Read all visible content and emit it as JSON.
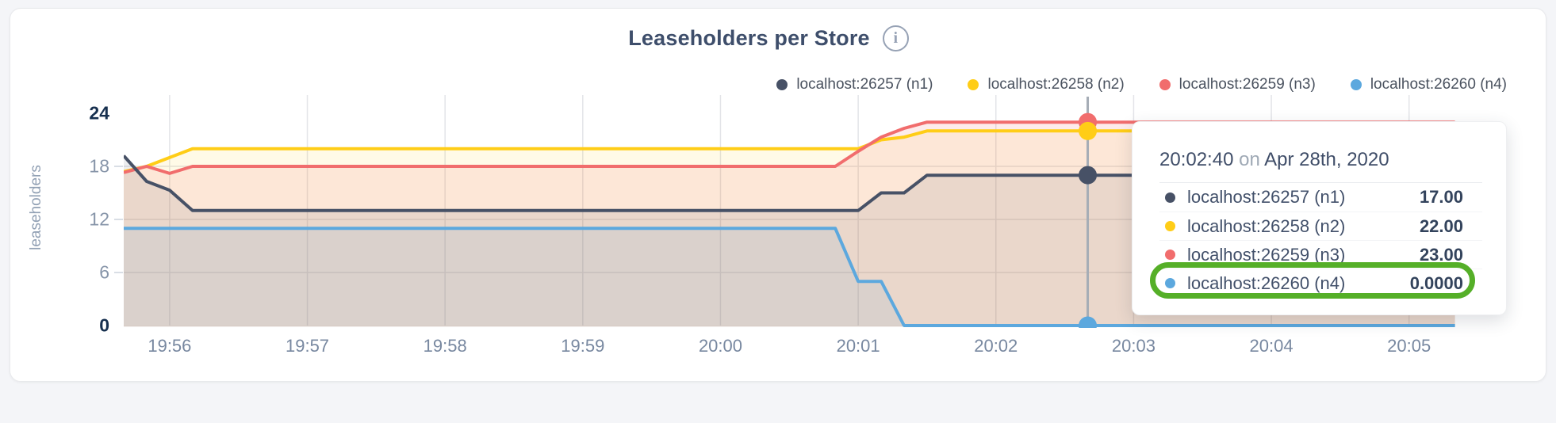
{
  "header": {
    "title": "Leaseholders per Store",
    "info_icon_glyph": "i"
  },
  "legend": [
    {
      "label": "localhost:26257 (n1)",
      "color": "#475166"
    },
    {
      "label": "localhost:26258 (n2)",
      "color": "#FFCD17"
    },
    {
      "label": "localhost:26259 (n3)",
      "color": "#F16D6D"
    },
    {
      "label": "localhost:26260 (n4)",
      "color": "#5CA8DE"
    }
  ],
  "axes": {
    "y_label": "leaseholders",
    "y_ticks": [
      {
        "value": 24,
        "label": "24",
        "emphasis": "major"
      },
      {
        "value": 18,
        "label": "18",
        "emphasis": "minor"
      },
      {
        "value": 12,
        "label": "12",
        "emphasis": "minor"
      },
      {
        "value": 6,
        "label": "6",
        "emphasis": "minor"
      },
      {
        "value": 0,
        "label": "0",
        "emphasis": "major"
      }
    ],
    "x_ticks": [
      "19:56",
      "19:57",
      "19:58",
      "19:59",
      "20:00",
      "20:01",
      "20:02",
      "20:03",
      "20:04",
      "20:05"
    ]
  },
  "chart_data": {
    "type": "area",
    "title": "Leaseholders per Store",
    "ylabel": "leaseholders",
    "ylim": [
      0,
      24
    ],
    "x_range": [
      "19:55:40",
      "20:05:35"
    ],
    "grid": true,
    "legend_position": "top-right",
    "series": [
      {
        "name": "localhost:26257 (n1)",
        "color": "#475166",
        "points": [
          [
            "19:55:40",
            19.2
          ],
          [
            "19:55:50",
            16.3
          ],
          [
            "19:56:00",
            15.3
          ],
          [
            "19:56:10",
            13
          ],
          [
            "20:01:00",
            13
          ],
          [
            "20:01:10",
            15
          ],
          [
            "20:01:20",
            15
          ],
          [
            "20:01:30",
            17
          ],
          [
            "20:05:20",
            17
          ]
        ]
      },
      {
        "name": "localhost:26258 (n2)",
        "color": "#FFCD17",
        "points": [
          [
            "19:55:40",
            17.4
          ],
          [
            "19:55:50",
            18
          ],
          [
            "19:56:10",
            20
          ],
          [
            "20:01:00",
            20
          ],
          [
            "20:01:10",
            21
          ],
          [
            "20:01:20",
            21.3
          ],
          [
            "20:01:30",
            22
          ],
          [
            "20:05:20",
            22
          ]
        ]
      },
      {
        "name": "localhost:26259 (n3)",
        "color": "#F16D6D",
        "points": [
          [
            "19:55:40",
            17.3
          ],
          [
            "19:55:50",
            18
          ],
          [
            "19:56:00",
            17.2
          ],
          [
            "19:56:10",
            18
          ],
          [
            "20:00:50",
            18
          ],
          [
            "20:01:00",
            19.7
          ],
          [
            "20:01:10",
            21.3
          ],
          [
            "20:01:20",
            22.3
          ],
          [
            "20:01:30",
            23
          ],
          [
            "20:05:20",
            23
          ]
        ]
      },
      {
        "name": "localhost:26260 (n4)",
        "color": "#5CA8DE",
        "points": [
          [
            "19:55:40",
            11
          ],
          [
            "20:00:50",
            11
          ],
          [
            "20:01:00",
            5
          ],
          [
            "20:01:10",
            5
          ],
          [
            "20:01:20",
            0
          ],
          [
            "20:05:20",
            0
          ]
        ]
      }
    ],
    "fill_opacity": [
      0.1,
      0.1,
      0.13,
      0.11
    ],
    "hover": {
      "time": "20:02:40",
      "values": [
        17,
        22,
        23,
        0
      ]
    }
  },
  "tooltip": {
    "time": "20:02:40",
    "on_word": "on",
    "date": "Apr 28th, 2020",
    "rows": [
      {
        "label": "localhost:26257 (n1)",
        "value": "17.00"
      },
      {
        "label": "localhost:26258 (n2)",
        "value": "22.00"
      },
      {
        "label": "localhost:26259 (n3)",
        "value": "23.00"
      },
      {
        "label": "localhost:26260 (n4)",
        "value": "0.0000"
      }
    ],
    "highlighted_row": 3,
    "highlight_color": "#55AF28"
  }
}
